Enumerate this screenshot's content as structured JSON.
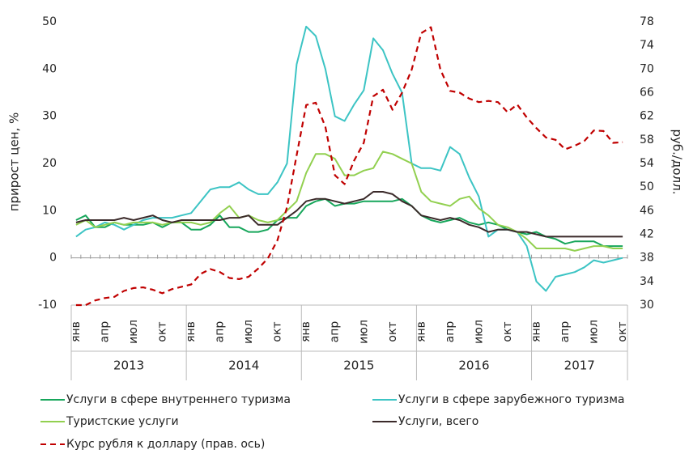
{
  "chart_data": {
    "type": "line",
    "ylabel": "прирост цен, %",
    "y2label": "руб./долл.",
    "ylim": [
      -10,
      50
    ],
    "yticks": [
      -10,
      0,
      10,
      20,
      30,
      40,
      50
    ],
    "y2lim": [
      30,
      78
    ],
    "y2ticks": [
      30,
      34,
      38,
      42,
      46,
      50,
      54,
      58,
      62,
      66,
      70,
      74,
      78
    ],
    "categories": [
      "янв",
      null,
      null,
      "апр",
      null,
      null,
      "июл",
      null,
      null,
      "окт",
      null,
      null,
      "янв",
      null,
      null,
      "апр",
      null,
      null,
      "июл",
      null,
      null,
      "окт",
      null,
      null,
      "янв",
      null,
      null,
      "апр",
      null,
      null,
      "июл",
      null,
      null,
      "окт",
      null,
      null,
      "янв",
      null,
      null,
      "апр",
      null,
      null,
      "июл",
      null,
      null,
      "окт",
      null,
      null,
      "янв",
      null,
      null,
      "апр",
      null,
      null,
      "июл",
      null,
      null,
      "окт"
    ],
    "years": [
      "2013",
      "2014",
      "2015",
      "2016",
      "2017"
    ],
    "series": [
      {
        "name": "Услуги в сфере внутреннего туризма",
        "color": "#17a65b",
        "values": [
          8,
          9,
          6.5,
          6.5,
          7.5,
          7,
          7,
          7,
          7.5,
          6.5,
          7.5,
          7.5,
          6,
          6,
          7,
          9,
          6.5,
          6.5,
          5.5,
          5.5,
          6,
          8,
          8.5,
          8.5,
          11,
          12,
          12.5,
          11,
          11.5,
          11.5,
          12,
          12,
          12,
          12,
          12.5,
          11,
          9,
          8,
          7.5,
          8,
          8.5,
          7.5,
          7,
          7.5,
          7,
          6,
          5.5,
          5,
          5.5,
          4.5,
          4,
          3,
          3.5,
          3.5,
          3.5,
          2.5,
          2.5,
          2.5
        ]
      },
      {
        "name": "Услуги в сфере зарубежного туризма",
        "color": "#3cc4c4",
        "values": [
          4.5,
          6,
          6.5,
          7.5,
          7,
          6,
          7,
          8,
          8.5,
          8.5,
          8.5,
          9,
          9.5,
          12,
          14.5,
          15,
          15,
          16,
          14.5,
          13.5,
          13.5,
          16,
          20,
          41,
          49,
          47,
          40,
          30,
          29,
          32.5,
          35.5,
          46.5,
          44,
          39,
          35,
          20,
          19,
          19,
          18.5,
          23.5,
          22,
          17,
          13,
          4.5,
          6,
          6,
          5.5,
          2.5,
          -5,
          -7,
          -4,
          -3.5,
          -3,
          -2,
          -0.5,
          -1,
          -0.5,
          0
        ]
      },
      {
        "name": "Туристские услуги",
        "color": "#92d050",
        "values": [
          7,
          8,
          6.5,
          7,
          7.5,
          7,
          7.5,
          7.5,
          7.5,
          7,
          7.5,
          7.5,
          7.5,
          7,
          7.5,
          9.5,
          11,
          8.5,
          9,
          8,
          7.5,
          8,
          10,
          12,
          18,
          22,
          22,
          21,
          17.5,
          17.5,
          18.5,
          19,
          22.5,
          22,
          21,
          20,
          14,
          12,
          11.5,
          11,
          12.5,
          13,
          10.5,
          9,
          7,
          6.5,
          5.5,
          4,
          2,
          2,
          2,
          2,
          1.5,
          2,
          2.5,
          2.5,
          2,
          2
        ]
      },
      {
        "name": "Услуги, всего",
        "color": "#3b2a2a",
        "values": [
          7.5,
          8,
          8,
          8,
          8,
          8.5,
          8,
          8.5,
          9,
          8,
          7.5,
          8,
          8,
          8,
          8,
          8,
          8.5,
          8.5,
          9,
          7,
          7,
          7,
          8.5,
          10,
          12,
          12.5,
          12.5,
          12,
          11.5,
          12,
          12.5,
          14,
          14,
          13.5,
          12,
          11,
          9,
          8.5,
          8,
          8.5,
          8,
          7,
          6.5,
          5.5,
          6,
          6,
          5.5,
          5.5,
          5,
          4.5,
          4.5,
          4.5,
          4.5,
          4.5,
          4.5,
          4.5,
          4.5,
          4.5
        ]
      },
      {
        "name": "Курс рубля к доллару (прав. ось)",
        "color": "#c00000",
        "dashed": true,
        "axis": "y2",
        "values": [
          30,
          30,
          30.8,
          31.2,
          31.4,
          32.4,
          32.9,
          33,
          32.6,
          32,
          32.7,
          33.1,
          33.5,
          35.3,
          36.1,
          35.6,
          34.6,
          34.4,
          34.8,
          36.2,
          37.9,
          41,
          46.6,
          55.4,
          63.9,
          64.3,
          60.2,
          52,
          50.5,
          54.5,
          57.5,
          65.4,
          66.5,
          63.1,
          66,
          69.9,
          76.1,
          77.1,
          69.9,
          66.3,
          66,
          65,
          64.4,
          64.6,
          64.4,
          62.7,
          64,
          61.8,
          60,
          58.4,
          58,
          56.4,
          57,
          57.8,
          59.6,
          59.5,
          57.5,
          57.6
        ]
      }
    ]
  }
}
